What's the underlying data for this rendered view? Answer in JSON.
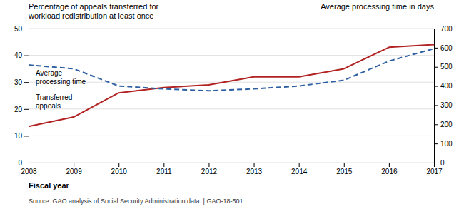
{
  "chart_data": {
    "type": "line",
    "x": [
      2008,
      2009,
      2010,
      2011,
      2012,
      2013,
      2014,
      2015,
      2016,
      2017
    ],
    "xlim": [
      2008,
      2017
    ],
    "xticks": [
      2008,
      2009,
      2010,
      2011,
      2012,
      2013,
      2014,
      2015,
      2016,
      2017
    ],
    "xlabel": "Fiscal year",
    "ylabel": "Percentage of appeals transferred for\nworkload redistribution at least once",
    "y2label": "Average processing time in days",
    "ylim": [
      0,
      50
    ],
    "yticks": [
      0,
      10,
      20,
      30,
      40,
      50
    ],
    "y2lim": [
      0,
      700
    ],
    "y2ticks": [
      0,
      100,
      200,
      300,
      400,
      500,
      600,
      700
    ],
    "grid": true,
    "series": [
      {
        "values": [
          13.5,
          17,
          26,
          28,
          29,
          32,
          32,
          35,
          43,
          44
        ],
        "color": "#B22222",
        "line_style": "solid"
      },
      {
        "values": [
          510,
          490,
          400,
          385,
          375,
          385,
          400,
          430,
          530,
          595
        ],
        "color": "#2E5FA3",
        "line_style": "dashed",
        "axis": "y2"
      }
    ],
    "annotations": [
      "Average\nprocessing time",
      "Transferred\nappeals",
      "Source: GAO analysis of Social Security Administration data.  |  GAO-18-501"
    ]
  }
}
